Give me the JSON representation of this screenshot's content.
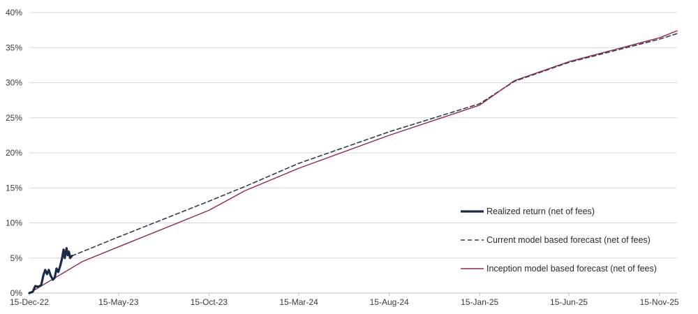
{
  "chart_data": {
    "type": "line",
    "title": "",
    "xlabel": "",
    "ylabel": "",
    "x_axis": {
      "type": "date",
      "range": [
        "2022-12-15",
        "2025-12-15"
      ],
      "ticks": [
        {
          "date": "2022-12-15",
          "label": "15-Dec-22"
        },
        {
          "date": "2023-05-15",
          "label": "15-May-23"
        },
        {
          "date": "2023-10-15",
          "label": "15-Oct-23"
        },
        {
          "date": "2024-03-15",
          "label": "15-Mar-24"
        },
        {
          "date": "2024-08-15",
          "label": "15-Aug-24"
        },
        {
          "date": "2025-01-15",
          "label": "15-Jan-25"
        },
        {
          "date": "2025-06-15",
          "label": "15-Jun-25"
        },
        {
          "date": "2025-11-15",
          "label": "15-Nov-25"
        }
      ]
    },
    "y_axis": {
      "range": [
        0,
        40
      ],
      "ticks": [
        {
          "value": 0,
          "label": "0%"
        },
        {
          "value": 5,
          "label": "5%"
        },
        {
          "value": 10,
          "label": "10%"
        },
        {
          "value": 15,
          "label": "15%"
        },
        {
          "value": 20,
          "label": "20%"
        },
        {
          "value": 25,
          "label": "25%"
        },
        {
          "value": 30,
          "label": "30%"
        },
        {
          "value": 35,
          "label": "35%"
        },
        {
          "value": 40,
          "label": "40%"
        }
      ]
    },
    "grid": true,
    "legend_position": "bottom-right",
    "series": [
      {
        "name": "Realized return (net of fees)",
        "color": "#1c2b45",
        "style": "solid-thick",
        "points": [
          [
            "2022-12-15",
            0.0
          ],
          [
            "2022-12-21",
            0.2
          ],
          [
            "2022-12-25",
            1.0
          ],
          [
            "2022-12-30",
            0.9
          ],
          [
            "2023-01-04",
            1.1
          ],
          [
            "2023-01-08",
            2.6
          ],
          [
            "2023-01-11",
            3.3
          ],
          [
            "2023-01-14",
            2.7
          ],
          [
            "2023-01-17",
            3.3
          ],
          [
            "2023-01-20",
            2.5
          ],
          [
            "2023-01-24",
            1.9
          ],
          [
            "2023-01-27",
            2.2
          ],
          [
            "2023-01-30",
            3.5
          ],
          [
            "2023-02-02",
            3.0
          ],
          [
            "2023-02-05",
            3.8
          ],
          [
            "2023-02-08",
            4.8
          ],
          [
            "2023-02-11",
            6.2
          ],
          [
            "2023-02-13",
            5.0
          ],
          [
            "2023-02-16",
            6.4
          ],
          [
            "2023-02-18",
            5.4
          ],
          [
            "2023-02-20",
            5.9
          ],
          [
            "2023-02-22",
            5.0
          ],
          [
            "2023-02-25",
            5.3
          ]
        ]
      },
      {
        "name": "Current model based forecast (net of fees)",
        "color": "#2e3d55",
        "style": "dashed",
        "points": [
          [
            "2023-02-25",
            5.3
          ],
          [
            "2023-05-15",
            8.0
          ],
          [
            "2023-10-15",
            13.1
          ],
          [
            "2023-12-15",
            15.2
          ],
          [
            "2024-03-15",
            18.5
          ],
          [
            "2024-08-15",
            23.0
          ],
          [
            "2025-01-15",
            27.0
          ],
          [
            "2025-03-15",
            30.2
          ],
          [
            "2025-06-15",
            32.9
          ],
          [
            "2025-11-15",
            36.2
          ],
          [
            "2025-12-15",
            37.0
          ]
        ]
      },
      {
        "name": "Inception model based forecast (net of fees)",
        "color": "#8e2850",
        "style": "solid-thin",
        "points": [
          [
            "2022-12-15",
            0.0
          ],
          [
            "2023-03-15",
            4.5
          ],
          [
            "2023-05-15",
            6.6
          ],
          [
            "2023-10-15",
            11.8
          ],
          [
            "2023-12-15",
            14.6
          ],
          [
            "2024-03-15",
            17.8
          ],
          [
            "2024-08-15",
            22.5
          ],
          [
            "2025-01-15",
            26.8
          ],
          [
            "2025-03-15",
            30.3
          ],
          [
            "2025-06-15",
            33.0
          ],
          [
            "2025-11-15",
            36.4
          ],
          [
            "2025-12-15",
            37.4
          ]
        ]
      }
    ]
  }
}
